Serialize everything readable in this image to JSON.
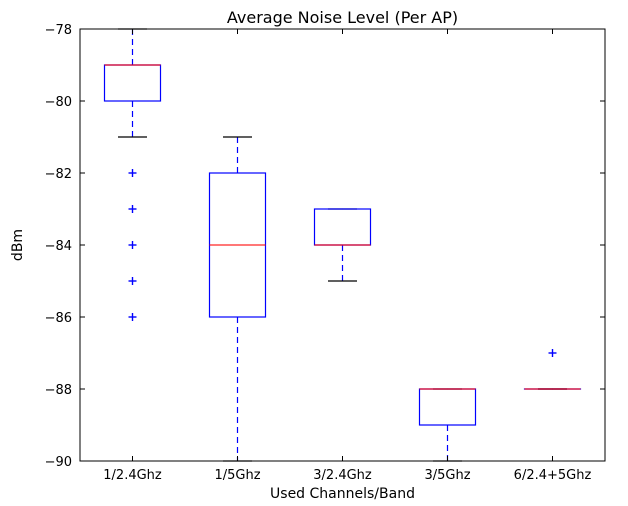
{
  "chart_data": {
    "type": "box",
    "title": "Average Noise Level (Per AP)",
    "xlabel": "Used Channels/Band",
    "ylabel": "dBm",
    "ylim": [
      -90,
      -78
    ],
    "yticks": [
      -78,
      -80,
      -82,
      -84,
      -86,
      -88,
      -90
    ],
    "ytick_labels": [
      "−78",
      "−80",
      "−82",
      "−84",
      "−86",
      "−88",
      "−90"
    ],
    "grid": false,
    "categories": [
      "1/2.4Ghz",
      "1/5Ghz",
      "3/2.4Ghz",
      "3/5Ghz",
      "6/2.4+5Ghz"
    ],
    "boxes": [
      {
        "whisker_low": -81,
        "q1": -80,
        "median": -79,
        "q3": -79,
        "whisker_high": -78,
        "outliers": [
          -82,
          -83,
          -84,
          -85,
          -86
        ]
      },
      {
        "whisker_low": -90,
        "q1": -86,
        "median": -84,
        "q3": -82,
        "whisker_high": -81,
        "outliers": []
      },
      {
        "whisker_low": -85,
        "q1": -84,
        "median": -84,
        "q3": -83,
        "whisker_high": -83,
        "outliers": []
      },
      {
        "whisker_low": -90,
        "q1": -89,
        "median": -88,
        "q3": -88,
        "whisker_high": -88,
        "outliers": []
      },
      {
        "whisker_low": -88,
        "q1": -88,
        "median": -88,
        "q3": -88,
        "whisker_high": -88,
        "outliers": [
          -87
        ]
      }
    ],
    "colors": {
      "box": "#0000ff",
      "median": "#ff0000",
      "whisker": "#0000ff",
      "cap": "#000000",
      "outlier": "#0000ff",
      "axes": "#000000"
    }
  }
}
